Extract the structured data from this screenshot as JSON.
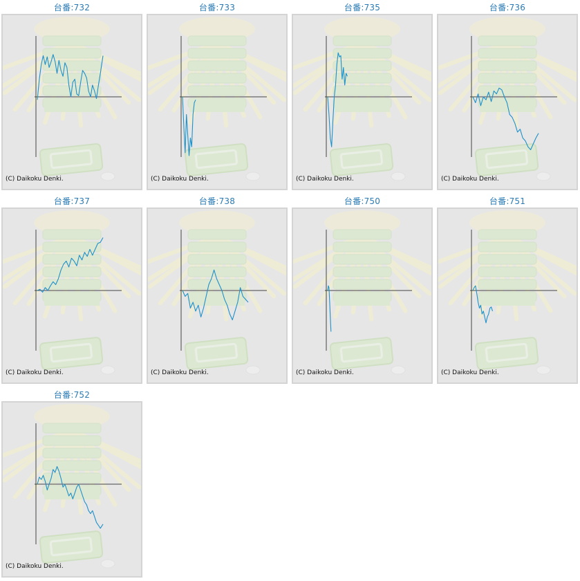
{
  "charts": [
    {
      "title": "台番:732",
      "copyright": "(C) Daikoku Denki."
    },
    {
      "title": "台番:733",
      "copyright": "(C) Daikoku Denki."
    },
    {
      "title": "台番:735",
      "copyright": "(C) Daikoku Denki."
    },
    {
      "title": "台番:736",
      "copyright": "(C) Daikoku Denki."
    },
    {
      "title": "台番:737",
      "copyright": "(C) Daikoku Denki."
    },
    {
      "title": "台番:738",
      "copyright": "(C) Daikoku Denki."
    },
    {
      "title": "台番:750",
      "copyright": "(C) Daikoku Denki."
    },
    {
      "title": "台番:751",
      "copyright": "(C) Daikoku Denki."
    },
    {
      "title": "台番:752",
      "copyright": "(C) Daikoku Denki."
    }
  ],
  "colors": {
    "line": "#1e90c8",
    "axis": "#444444",
    "title": "#2a7bb5",
    "panel_bg": "#e6e6e6"
  },
  "chart_data": [
    {
      "type": "line",
      "title": "台番:732",
      "ylim": [
        -1,
        1
      ],
      "x": [
        0,
        0.03,
        0.06,
        0.09,
        0.12,
        0.15,
        0.18,
        0.21,
        0.24,
        0.27,
        0.3,
        0.33,
        0.36,
        0.39,
        0.42,
        0.45,
        0.48,
        0.51,
        0.54,
        0.57,
        0.6,
        0.63,
        0.66,
        0.69,
        0.72,
        0.75,
        0.78,
        0.81,
        0.84,
        0.87,
        0.9,
        0.93,
        0.96,
        1
      ],
      "y": [
        -0.05,
        0.3,
        0.55,
        0.7,
        0.55,
        0.68,
        0.5,
        0.6,
        0.72,
        0.6,
        0.4,
        0.62,
        0.45,
        0.35,
        0.58,
        0.5,
        0.2,
        0.0,
        0.25,
        0.3,
        0.05,
        0.02,
        0.25,
        0.45,
        0.4,
        0.32,
        0.1,
        0.0,
        0.2,
        0.1,
        -0.03,
        0.2,
        0.4,
        0.7
      ]
    },
    {
      "type": "line",
      "title": "台番:733",
      "ylim": [
        -1,
        1
      ],
      "x": [
        0,
        0.02,
        0.04,
        0.06,
        0.08,
        0.1,
        0.12,
        0.14,
        0.16,
        0.18,
        0.2
      ],
      "y": [
        0,
        -0.5,
        -0.95,
        -0.3,
        -0.65,
        -1.0,
        -0.7,
        -0.85,
        -0.3,
        -0.1,
        -0.05
      ]
    },
    {
      "type": "line",
      "title": "台番:735",
      "ylim": [
        -1,
        1
      ],
      "x": [
        0,
        0.02,
        0.04,
        0.06,
        0.08,
        0.1,
        0.12,
        0.14,
        0.16,
        0.18,
        0.2,
        0.22,
        0.24,
        0.26,
        0.28,
        0.3
      ],
      "y": [
        0,
        -0.3,
        -0.7,
        -0.85,
        -0.4,
        0.0,
        0.2,
        0.55,
        0.75,
        0.68,
        0.7,
        0.3,
        0.5,
        0.2,
        0.4,
        0.35
      ]
    },
    {
      "type": "line",
      "title": "台番:736",
      "ylim": [
        -1,
        1
      ],
      "x": [
        0,
        0.04,
        0.08,
        0.12,
        0.16,
        0.2,
        0.24,
        0.28,
        0.32,
        0.36,
        0.4,
        0.44,
        0.48,
        0.52,
        0.56,
        0.6,
        0.64,
        0.68,
        0.72,
        0.76,
        0.8,
        0.84,
        0.88,
        0.92,
        0.96,
        1.0
      ],
      "y": [
        0,
        -0.1,
        0.05,
        -0.15,
        0.0,
        -0.05,
        0.08,
        -0.08,
        0.1,
        0.05,
        0.15,
        0.12,
        0.0,
        -0.1,
        -0.3,
        -0.35,
        -0.45,
        -0.6,
        -0.55,
        -0.7,
        -0.75,
        -0.85,
        -0.9,
        -0.8,
        -0.7,
        -0.62
      ]
    },
    {
      "type": "line",
      "title": "台番:737",
      "ylim": [
        -1,
        1
      ],
      "x": [
        0,
        0.04,
        0.08,
        0.12,
        0.16,
        0.2,
        0.24,
        0.28,
        0.32,
        0.36,
        0.4,
        0.44,
        0.48,
        0.52,
        0.56,
        0.6,
        0.64,
        0.68,
        0.72,
        0.76,
        0.8,
        0.84,
        0.88,
        0.92,
        0.96,
        1.0
      ],
      "y": [
        0,
        0.02,
        -0.03,
        0.05,
        0.0,
        0.08,
        0.15,
        0.1,
        0.2,
        0.35,
        0.45,
        0.5,
        0.4,
        0.55,
        0.5,
        0.42,
        0.6,
        0.52,
        0.65,
        0.58,
        0.7,
        0.6,
        0.7,
        0.8,
        0.82,
        0.9
      ]
    },
    {
      "type": "line",
      "title": "台番:738",
      "ylim": [
        -1,
        1
      ],
      "x": [
        0,
        0.04,
        0.08,
        0.12,
        0.16,
        0.2,
        0.24,
        0.28,
        0.32,
        0.36,
        0.4,
        0.44,
        0.48,
        0.52,
        0.56,
        0.6,
        0.64,
        0.68,
        0.72,
        0.76,
        0.8,
        0.84,
        0.88,
        0.92,
        0.96,
        1.0
      ],
      "y": [
        0,
        -0.1,
        -0.05,
        -0.3,
        -0.2,
        -0.35,
        -0.25,
        -0.45,
        -0.3,
        -0.1,
        0.1,
        0.2,
        0.35,
        0.2,
        0.1,
        0.0,
        -0.15,
        -0.25,
        -0.4,
        -0.5,
        -0.35,
        -0.2,
        0.05,
        -0.1,
        -0.15,
        -0.2
      ]
    },
    {
      "type": "line",
      "title": "台番:750",
      "ylim": [
        -1,
        1
      ],
      "x": [
        0,
        0.01,
        0.02,
        0.03,
        0.04,
        0.05
      ],
      "y": [
        0,
        0.08,
        0.05,
        -0.2,
        -0.45,
        -0.7
      ]
    },
    {
      "type": "line",
      "title": "台番:751",
      "ylim": [
        -1,
        1
      ],
      "x": [
        0,
        0.02,
        0.04,
        0.06,
        0.08,
        0.1,
        0.12,
        0.14,
        0.16,
        0.18,
        0.2,
        0.22,
        0.24,
        0.26,
        0.28,
        0.3
      ],
      "y": [
        0,
        0.05,
        0.08,
        -0.05,
        -0.2,
        -0.3,
        -0.25,
        -0.4,
        -0.35,
        -0.45,
        -0.55,
        -0.45,
        -0.4,
        -0.3,
        -0.28,
        -0.35
      ]
    },
    {
      "type": "line",
      "title": "台番:752",
      "ylim": [
        -1,
        1
      ],
      "x": [
        0,
        0.03,
        0.06,
        0.09,
        0.12,
        0.15,
        0.18,
        0.21,
        0.24,
        0.27,
        0.3,
        0.33,
        0.36,
        0.39,
        0.42,
        0.45,
        0.48,
        0.51,
        0.54,
        0.57,
        0.6,
        0.63,
        0.66,
        0.69,
        0.72,
        0.75,
        0.78,
        0.81,
        0.84,
        0.87,
        0.9,
        0.93,
        0.96,
        1.0
      ],
      "y": [
        0,
        0.12,
        0.08,
        0.15,
        0.05,
        -0.1,
        0.0,
        0.1,
        0.25,
        0.2,
        0.3,
        0.22,
        0.1,
        -0.05,
        0.0,
        -0.1,
        -0.2,
        -0.15,
        -0.25,
        -0.15,
        -0.05,
        0.0,
        -0.1,
        -0.2,
        -0.3,
        -0.35,
        -0.45,
        -0.5,
        -0.45,
        -0.55,
        -0.65,
        -0.7,
        -0.75,
        -0.68
      ]
    }
  ]
}
